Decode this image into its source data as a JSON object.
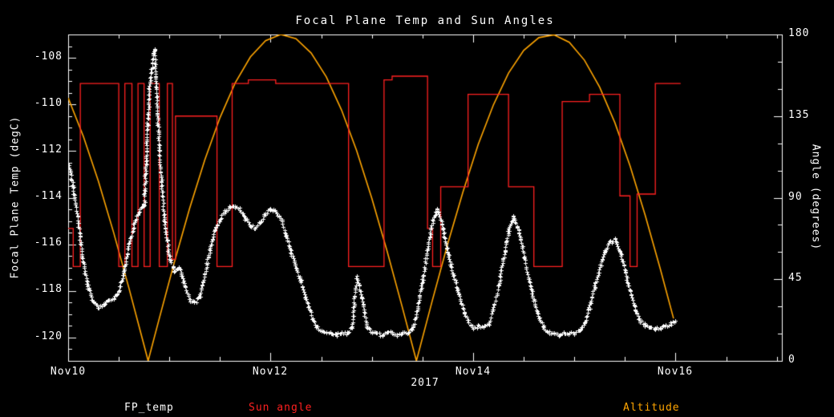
{
  "chart_data": {
    "type": "line",
    "title": "Focal Plane Temp and Sun Angles",
    "xlabel": "2017",
    "ylabel_left": "Focal Plane Temp (degC)",
    "ylabel_right": "Angle (degrees)",
    "background_color": "#000000",
    "frame_color": "#ffffff",
    "xlim": [
      0,
      7.05
    ],
    "x_unit": "days after Nov10 2017",
    "ylim_left": [
      -121,
      -107
    ],
    "ylim_right": [
      0,
      180
    ],
    "x_ticks": [
      {
        "t": 0,
        "label": "Nov10"
      },
      {
        "t": 2,
        "label": "Nov12"
      },
      {
        "t": 4,
        "label": "Nov14"
      },
      {
        "t": 6,
        "label": "Nov16"
      }
    ],
    "x_minor_step": 0.5,
    "left_ticks": [
      -108,
      -110,
      -112,
      -114,
      -116,
      -118,
      -120
    ],
    "left_minor_step": 0.5,
    "right_ticks": [
      0,
      45,
      90,
      135,
      180
    ],
    "right_minor_step": 15,
    "grid": false,
    "legend_position": "bottom",
    "legend": [
      {
        "label": "FP_temp",
        "color": "#ffffff"
      },
      {
        "label": "Sun angle",
        "color": "#ff2020"
      },
      {
        "label": "Altitude",
        "color": "#ffa500"
      }
    ],
    "series": [
      {
        "name": "FP_temp",
        "axis": "left",
        "color": "#ffffff",
        "style": "markers",
        "marker": "asterisk",
        "t0": 0,
        "dt": 0.05,
        "values": [
          -112.5,
          -113.6,
          -115.2,
          -116.8,
          -117.9,
          -118.5,
          -118.7,
          -118.6,
          -118.4,
          -118.3,
          -118.0,
          -117.2,
          -116.0,
          -115.1,
          -114.6,
          -114.3,
          -109.2,
          -107.6,
          -112.0,
          -115.0,
          -116.5,
          -117.2,
          -117.0,
          -117.8,
          -118.4,
          -118.5,
          -118.2,
          -117.3,
          -116.2,
          -115.4,
          -114.9,
          -114.6,
          -114.4,
          -114.4,
          -114.5,
          -114.9,
          -115.2,
          -115.3,
          -115.0,
          -114.7,
          -114.5,
          -114.6,
          -114.9,
          -115.6,
          -116.3,
          -117.0,
          -117.6,
          -118.3,
          -119.0,
          -119.5,
          -119.7,
          -119.8,
          -119.8,
          -119.9,
          -119.8,
          -119.8,
          -119.6,
          -117.4,
          -118.3,
          -119.5,
          -119.8,
          -119.8,
          -119.9,
          -119.8,
          -119.8,
          -119.9,
          -119.8,
          -119.8,
          -119.6,
          -118.8,
          -117.5,
          -116.2,
          -115.0,
          -114.5,
          -115.3,
          -116.4,
          -117.2,
          -118.0,
          -118.8,
          -119.3,
          -119.6,
          -119.5,
          -119.6,
          -119.4,
          -118.8,
          -117.8,
          -116.6,
          -115.4,
          -114.8,
          -115.4,
          -116.5,
          -117.5,
          -118.4,
          -119.2,
          -119.6,
          -119.8,
          -119.8,
          -119.9,
          -119.8,
          -119.8,
          -119.8,
          -119.7,
          -119.4,
          -118.7,
          -117.8,
          -117.0,
          -116.3,
          -115.9,
          -115.8,
          -116.3,
          -117.1,
          -118.0,
          -118.8,
          -119.3,
          -119.5,
          -119.6,
          -119.6,
          -119.6,
          -119.5,
          -119.4,
          -119.3
        ]
      },
      {
        "name": "Sun angle",
        "axis": "right",
        "color": "#ff2020",
        "style": "steps",
        "t_end": 6.05,
        "steps": [
          [
            0.0,
            73
          ],
          [
            0.05,
            52
          ],
          [
            0.12,
            153
          ],
          [
            0.5,
            52
          ],
          [
            0.56,
            153
          ],
          [
            0.63,
            52
          ],
          [
            0.69,
            153
          ],
          [
            0.75,
            52
          ],
          [
            0.81,
            153
          ],
          [
            0.9,
            52
          ],
          [
            0.98,
            153
          ],
          [
            1.03,
            56
          ],
          [
            1.06,
            135
          ],
          [
            1.47,
            52
          ],
          [
            1.62,
            153
          ],
          [
            1.78,
            155
          ],
          [
            2.05,
            153
          ],
          [
            2.77,
            52
          ],
          [
            3.12,
            155
          ],
          [
            3.2,
            157
          ],
          [
            3.55,
            73
          ],
          [
            3.6,
            52
          ],
          [
            3.68,
            96
          ],
          [
            3.95,
            147
          ],
          [
            4.35,
            96
          ],
          [
            4.6,
            52
          ],
          [
            4.88,
            143
          ],
          [
            5.15,
            147
          ],
          [
            5.45,
            91
          ],
          [
            5.55,
            52
          ],
          [
            5.62,
            92
          ],
          [
            5.8,
            153
          ]
        ]
      },
      {
        "name": "Altitude",
        "axis": "right",
        "color": "#ffa500",
        "style": "line",
        "points": [
          [
            0.0,
            145.0
          ],
          [
            0.15,
            123.8
          ],
          [
            0.3,
            98.8
          ],
          [
            0.45,
            70.6
          ],
          [
            0.6,
            40.2
          ],
          [
            0.75,
            8.5
          ],
          [
            0.79,
            0.0
          ],
          [
            0.9,
            23.4
          ],
          [
            1.05,
            54.6
          ],
          [
            1.2,
            84.1
          ],
          [
            1.35,
            110.9
          ],
          [
            1.5,
            134.2
          ],
          [
            1.65,
            153.3
          ],
          [
            1.8,
            167.6
          ],
          [
            1.95,
            176.6
          ],
          [
            2.1,
            180.0
          ],
          [
            2.25,
            177.7
          ],
          [
            2.4,
            169.8
          ],
          [
            2.55,
            156.6
          ],
          [
            2.7,
            138.4
          ],
          [
            2.85,
            115.9
          ],
          [
            3.0,
            89.6
          ],
          [
            3.15,
            60.6
          ],
          [
            3.3,
            29.7
          ],
          [
            3.44,
            0.0
          ],
          [
            3.6,
            33.9
          ],
          [
            3.75,
            64.7
          ],
          [
            3.9,
            93.2
          ],
          [
            4.05,
            119.3
          ],
          [
            4.2,
            141.1
          ],
          [
            4.35,
            158.7
          ],
          [
            4.5,
            171.2
          ],
          [
            4.65,
            178.3
          ],
          [
            4.8,
            179.8
          ],
          [
            4.95,
            175.7
          ],
          [
            5.1,
            165.8
          ],
          [
            5.25,
            151.0
          ],
          [
            5.4,
            131.4
          ],
          [
            5.55,
            107.6
          ],
          [
            5.7,
            80.3
          ],
          [
            5.85,
            50.5
          ],
          [
            5.98,
            23.4
          ]
        ]
      }
    ]
  }
}
